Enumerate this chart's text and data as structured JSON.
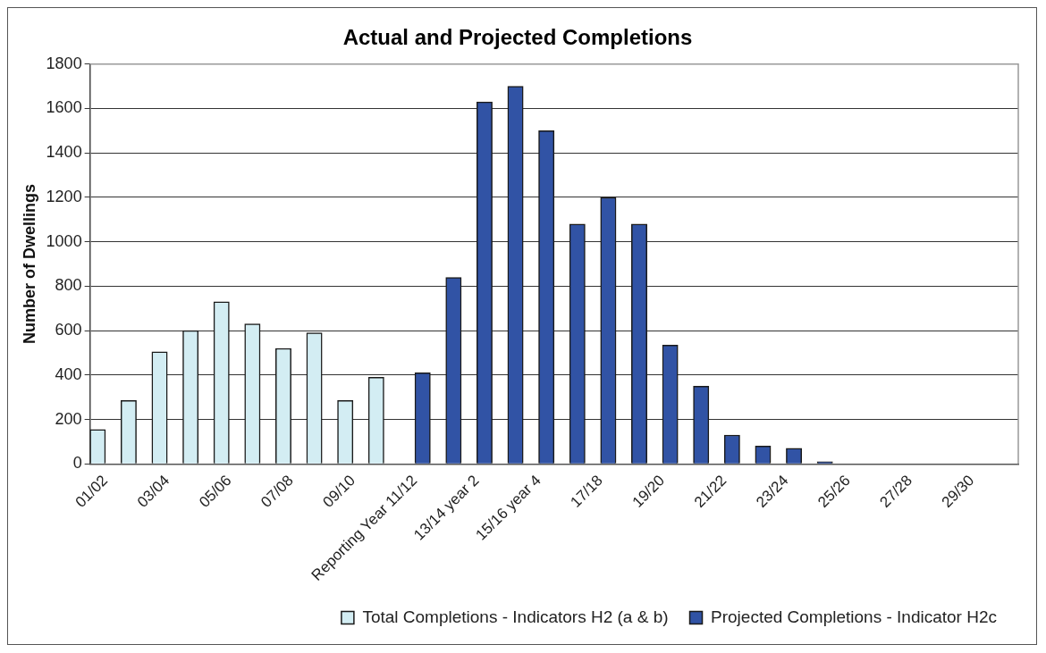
{
  "chart_data": {
    "type": "bar",
    "title": "Actual and Projected Completions",
    "ylabel": "Number of Dwellings",
    "categories": [
      "01/02",
      null,
      "03/04",
      null,
      "05/06",
      null,
      "07/08",
      null,
      "09/10",
      null,
      "Reporting Year 11/12",
      null,
      "13/14 year 2",
      null,
      "15/16 year 4",
      null,
      "17/18",
      null,
      "19/20",
      null,
      "21/22",
      null,
      "23/24",
      null,
      "25/26",
      null,
      "27/28",
      null,
      "29/30",
      null
    ],
    "series": [
      {
        "name": "Total Completions - Indicators H2 (a & b)",
        "color": "#d3edf3",
        "values": [
          155,
          285,
          505,
          600,
          730,
          630,
          520,
          590,
          285,
          390,
          null,
          null,
          null,
          null,
          null,
          null,
          null,
          null,
          null,
          null,
          null,
          null,
          null,
          null,
          null,
          null,
          null,
          null,
          null,
          null
        ]
      },
      {
        "name": "Projected Completions - Indicator H2c",
        "color": "#3153a5",
        "values": [
          null,
          null,
          null,
          null,
          null,
          null,
          null,
          null,
          null,
          null,
          410,
          840,
          1630,
          1700,
          1500,
          1080,
          1200,
          1080,
          535,
          350,
          130,
          80,
          70,
          10,
          null,
          null,
          null,
          null,
          null,
          null
        ]
      }
    ],
    "ylim": [
      0,
      1800
    ],
    "yticks": [
      0,
      200,
      400,
      600,
      800,
      1000,
      1200,
      1400,
      1600,
      1800
    ],
    "grid": "y",
    "legend": "bottom right"
  }
}
